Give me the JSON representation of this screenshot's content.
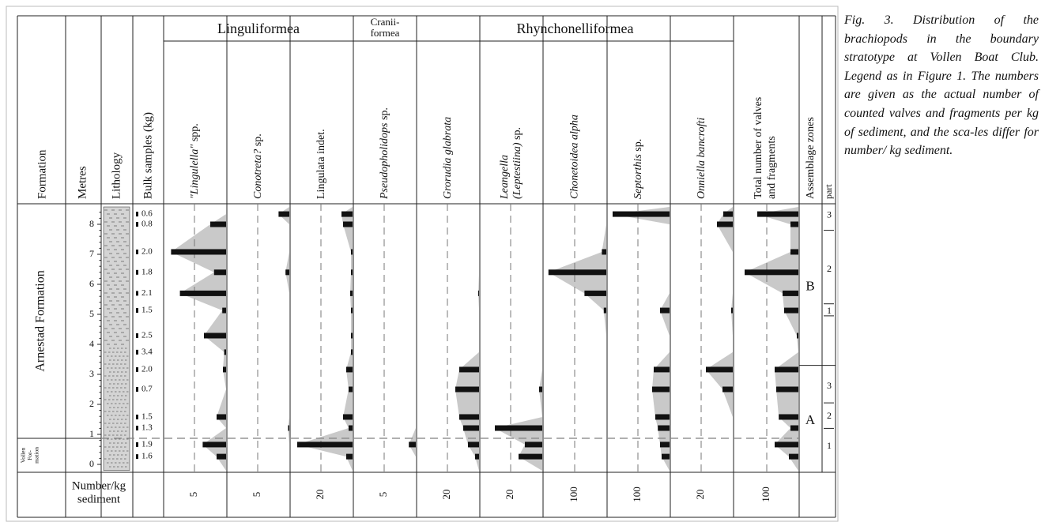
{
  "figure": {
    "headers": {
      "formation": "Formation",
      "metres": "Metres",
      "lithology": "Lithology",
      "bulk": "Bulk samples (kg)",
      "total": [
        "Total number of valves",
        "and fragments"
      ],
      "zones": "Assemblage zones",
      "part": "part",
      "scale_row": [
        "Number/kg",
        "sediment"
      ]
    },
    "groups": [
      {
        "lines": [
          "Linguliformea"
        ],
        "span": [
          0,
          2
        ]
      },
      {
        "lines": [
          "Cranii-",
          "formea"
        ],
        "span": [
          3,
          3
        ]
      },
      {
        "lines": [
          "Rhynchonelliformea"
        ],
        "span": [
          4,
          8
        ]
      }
    ],
    "formations": {
      "upper": "Arnestad Formation",
      "lower": [
        "Vollen",
        "For-",
        "mation"
      ]
    },
    "metre_ticks": [
      0,
      1,
      2,
      3,
      4,
      5,
      6,
      7,
      8
    ],
    "samples": [
      {
        "metre": 8.34,
        "label": "0.6"
      },
      {
        "metre": 8.0,
        "label": "0.8"
      },
      {
        "metre": 7.08,
        "label": "2.0"
      },
      {
        "metre": 6.4,
        "label": "1.8"
      },
      {
        "metre": 5.7,
        "label": "2.1"
      },
      {
        "metre": 5.13,
        "label": "1.5"
      },
      {
        "metre": 4.29,
        "label": "2.5"
      },
      {
        "metre": 3.74,
        "label": "3.4"
      },
      {
        "metre": 3.16,
        "label": "2.0"
      },
      {
        "metre": 2.5,
        "label": "0.7"
      },
      {
        "metre": 1.58,
        "label": "1.5"
      },
      {
        "metre": 1.21,
        "label": "1.3"
      },
      {
        "metre": 0.66,
        "label": "1.9"
      },
      {
        "metre": 0.26,
        "label": "1.6"
      }
    ],
    "taxa": [
      {
        "lines": [
          [
            {
              "text": "\"Lingulella\"",
              "italic": true
            },
            {
              "text": " spp.",
              "italic": false
            }
          ]
        ],
        "scale": 5,
        "values": [
          0,
          2.5,
          8.7,
          1.9,
          7.3,
          0.6,
          3.5,
          0.3,
          0.5,
          0,
          1.5,
          0,
          3.7,
          1.5
        ]
      },
      {
        "lines": [
          [
            {
              "text": "Conotreta?",
              "italic": true
            },
            {
              "text": " sp.",
              "italic": false
            }
          ]
        ],
        "scale": 5,
        "values": [
          1.7,
          0,
          0,
          0.6,
          0,
          0,
          0,
          0,
          0,
          0,
          0,
          0.2,
          0,
          0
        ]
      },
      {
        "lines": [
          [
            {
              "text": "Lingulata indet.",
              "italic": false
            }
          ]
        ],
        "scale": 20,
        "values": [
          7,
          6,
          1,
          1,
          1.5,
          1,
          1,
          1,
          4,
          2.5,
          6,
          2.5,
          35,
          4
        ]
      },
      {
        "lines": [
          [
            {
              "text": "Pseudopholidops",
              "italic": true
            },
            {
              "text": " sp.",
              "italic": false
            }
          ]
        ],
        "scale": 5,
        "values": [
          0,
          0,
          0,
          0,
          0,
          0,
          0,
          0,
          0,
          0,
          0,
          0,
          1.1,
          0
        ]
      },
      {
        "lines": [
          [
            {
              "text": "Grorudia glabrata",
              "italic": true
            }
          ]
        ],
        "scale": 20,
        "values": [
          0,
          0,
          0,
          0,
          0.5,
          0,
          0,
          0,
          12.5,
          15,
          12.5,
          10,
          7,
          2.5
        ]
      },
      {
        "lines": [
          [
            {
              "text": "Leangella",
              "italic": true
            }
          ],
          [
            {
              "text": "(Leptestiina)",
              "italic": true
            },
            {
              "text": " sp.",
              "italic": false
            }
          ]
        ],
        "scale": 20,
        "values": [
          0,
          0,
          0,
          0,
          0,
          0,
          0,
          0,
          0,
          2,
          0,
          30,
          11,
          15
        ]
      },
      {
        "lines": [
          [
            {
              "text": "Chonetoidea alpha",
              "italic": true
            }
          ]
        ],
        "scale": 100,
        "values": [
          0,
          0,
          14,
          183,
          69,
          8,
          0,
          0,
          0,
          0,
          0,
          0,
          0,
          0
        ]
      },
      {
        "lines": [
          [
            {
              "text": "Septorthis",
              "italic": true
            },
            {
              "text": " sp.",
              "italic": false
            }
          ]
        ],
        "scale": 100,
        "values": [
          180,
          0,
          0,
          0,
          0,
          30,
          0,
          0,
          50,
          55,
          45,
          37,
          30,
          25
        ]
      },
      {
        "lines": [
          [
            {
              "text": "Onniella bancrofti",
              "italic": true
            }
          ]
        ],
        "scale": 20,
        "values": [
          6,
          10,
          0,
          0,
          0,
          1,
          0,
          0,
          17,
          6.5,
          0,
          0,
          0,
          0
        ]
      }
    ],
    "total": {
      "scale": 100,
      "values": [
        130,
        25,
        25,
        170,
        50,
        45,
        5,
        0,
        75,
        70,
        62,
        25,
        75,
        30
      ]
    },
    "zones": [
      {
        "name": "B",
        "parts": [
          "3",
          "2",
          "1"
        ]
      },
      {
        "name": "A",
        "parts": [
          "3",
          "2",
          "1"
        ]
      }
    ],
    "caption": "Fig. 3. Distribution of the brachiopods in the boundary stratotype at Vollen Boat Club. Legend as in Figure 1. The numbers are given as the actual number of counted valves and fragments per kg of sediment, and the sca-les differ for number/ kg sediment."
  }
}
